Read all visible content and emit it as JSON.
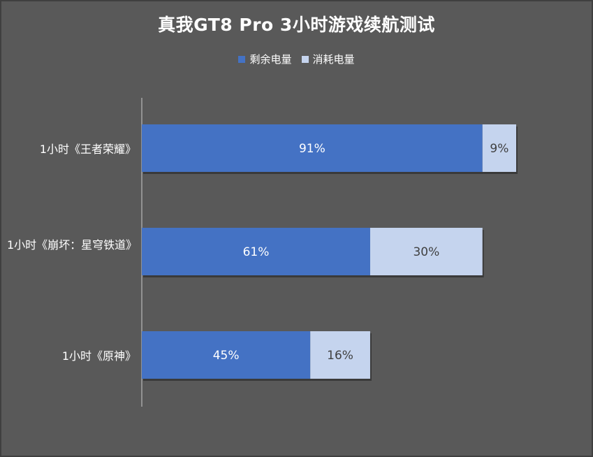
{
  "chart_data": {
    "type": "bar",
    "orientation": "horizontal",
    "stacked": true,
    "title": "真我GT8 Pro 3小时游戏续航测试",
    "categories": [
      "1小时《王者荣耀》",
      "1小时《崩坏：星穹铁道》",
      "1小时《原神》"
    ],
    "series": [
      {
        "name": "剩余电量",
        "values": [
          91,
          61,
          45
        ],
        "labels": [
          "91%",
          "61%",
          "45%"
        ],
        "color": "#4472C4"
      },
      {
        "name": "消耗电量",
        "values": [
          9,
          30,
          16
        ],
        "labels": [
          "9%",
          "30%",
          "16%"
        ],
        "color": "#C5D4EE"
      }
    ],
    "xlim": [
      0,
      100
    ],
    "grid": false,
    "legend_position": "top"
  },
  "colors": {
    "background": "#595959",
    "text": "#ffffff",
    "axis": "#a6a6a6",
    "label_dark": "#404040"
  }
}
